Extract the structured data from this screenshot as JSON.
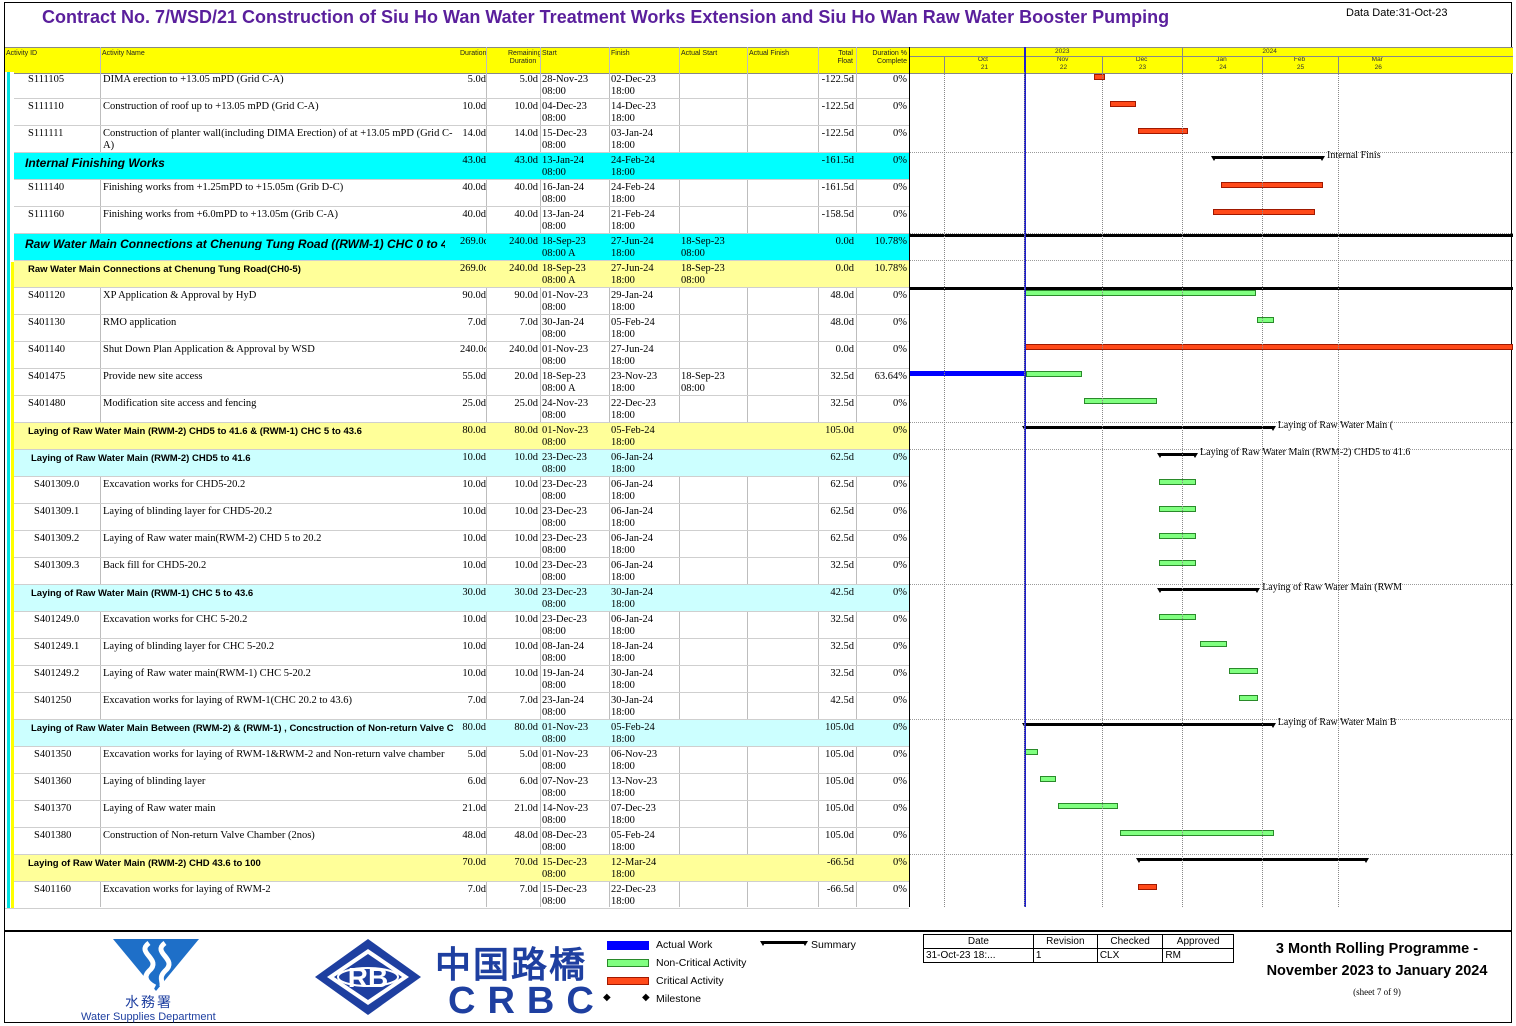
{
  "title": "Contract No. 7/WSD/21 Construction of Siu Ho Wan Water Treatment Works Extension and Siu Ho Wan Raw Water Booster Pumping",
  "data_date": "Data Date:31-Oct-23",
  "columns": {
    "activity_id": "Activity ID",
    "activity_name": "Activity Name",
    "duration": "Duration",
    "remaining_duration": "Remaining Duration",
    "start": "Start",
    "finish": "Finish",
    "actual_start": "Actual Start",
    "actual_finish": "Actual Finish",
    "total_float": "Total Float",
    "pct_complete": "Duration % Complete"
  },
  "timescale": {
    "years": [
      "2023",
      "2024"
    ],
    "months": [
      "Oct",
      "Nov",
      "Dec",
      "Jan",
      "Feb",
      "Mar"
    ],
    "weeks": [
      "21",
      "22",
      "23",
      "24",
      "25",
      "26"
    ]
  },
  "rows": [
    {
      "id": "S111105",
      "name": "DIMA erection to +13.05 mPD (Grid C-A)",
      "dur": "5.0d",
      "rem": "5.0d",
      "start": "28-Nov-23",
      "start_t": "08:00",
      "finish": "02-Dec-23",
      "finish_t": "18:00",
      "as": "",
      "as_t": "",
      "af": "",
      "tf": "-122.5d",
      "pct": "0%",
      "type": "task"
    },
    {
      "id": "S111110",
      "name": "Construction of roof up to +13.05 mPD (Grid C-A)",
      "dur": "10.0d",
      "rem": "10.0d",
      "start": "04-Dec-23",
      "start_t": "08:00",
      "finish": "14-Dec-23",
      "finish_t": "18:00",
      "as": "",
      "as_t": "",
      "af": "",
      "tf": "-122.5d",
      "pct": "0%",
      "type": "task"
    },
    {
      "id": "S111111",
      "name": "Construction of planter wall(including DIMA Erection) of at +13.05 mPD (Grid C-A)",
      "dur": "14.0d",
      "rem": "14.0d",
      "start": "15-Dec-23",
      "start_t": "08:00",
      "finish": "03-Jan-24",
      "finish_t": "18:00",
      "as": "",
      "as_t": "",
      "af": "",
      "tf": "-122.5d",
      "pct": "0%",
      "type": "task"
    },
    {
      "id": "",
      "name": "Internal Finishing Works",
      "dur": "43.0d",
      "rem": "43.0d",
      "start": "13-Jan-24",
      "start_t": "08:00",
      "finish": "24-Feb-24",
      "finish_t": "18:00",
      "as": "",
      "as_t": "",
      "af": "",
      "tf": "-161.5d",
      "pct": "0%",
      "type": "wbs1"
    },
    {
      "id": "S111140",
      "name": "Finishing works from +1.25mPD to +15.05m (Grib D-C)",
      "dur": "40.0d",
      "rem": "40.0d",
      "start": "16-Jan-24",
      "start_t": "08:00",
      "finish": "24-Feb-24",
      "finish_t": "18:00",
      "as": "",
      "as_t": "",
      "af": "",
      "tf": "-161.5d",
      "pct": "0%",
      "type": "task"
    },
    {
      "id": "S111160",
      "name": "Finishing works from +6.0mPD to +13.05m (Grib C-A)",
      "dur": "40.0d",
      "rem": "40.0d",
      "start": "13-Jan-24",
      "start_t": "08:00",
      "finish": "21-Feb-24",
      "finish_t": "18:00",
      "as": "",
      "as_t": "",
      "af": "",
      "tf": "-158.5d",
      "pct": "0%",
      "type": "task"
    },
    {
      "id": "",
      "name": "Raw Water Main Connections at Chenung Tung Road ((RWM-1) CHC 0  to 4",
      "dur": "269.0d",
      "rem": "240.0d",
      "start": "18-Sep-23",
      "start_t": "08:00 A",
      "finish": "27-Jun-24",
      "finish_t": "18:00",
      "as": "18-Sep-23",
      "as_t": "08:00",
      "af": "",
      "tf": "0.0d",
      "pct": "10.78%",
      "type": "wbs1"
    },
    {
      "id": "",
      "name": "Raw Water Main Connections at Chenung Tung Road(CH0-5)",
      "dur": "269.0d",
      "rem": "240.0d",
      "start": "18-Sep-23",
      "start_t": "08:00 A",
      "finish": "27-Jun-24",
      "finish_t": "18:00",
      "as": "18-Sep-23",
      "as_t": "08:00",
      "af": "",
      "tf": "0.0d",
      "pct": "10.78%",
      "type": "wbs2"
    },
    {
      "id": "S401120",
      "name": "XP Application & Approval by HyD",
      "dur": "90.0d",
      "rem": "90.0d",
      "start": "01-Nov-23",
      "start_t": "08:00",
      "finish": "29-Jan-24",
      "finish_t": "18:00",
      "as": "",
      "as_t": "",
      "af": "",
      "tf": "48.0d",
      "pct": "0%",
      "type": "task"
    },
    {
      "id": "S401130",
      "name": "RMO application",
      "dur": "7.0d",
      "rem": "7.0d",
      "start": "30-Jan-24",
      "start_t": "08:00",
      "finish": "05-Feb-24",
      "finish_t": "18:00",
      "as": "",
      "as_t": "",
      "af": "",
      "tf": "48.0d",
      "pct": "0%",
      "type": "task"
    },
    {
      "id": "S401140",
      "name": "Shut Down Plan Application & Approval by WSD",
      "dur": "240.0d",
      "rem": "240.0d",
      "start": "01-Nov-23",
      "start_t": "08:00",
      "finish": "27-Jun-24",
      "finish_t": "18:00",
      "as": "",
      "as_t": "",
      "af": "",
      "tf": "0.0d",
      "pct": "0%",
      "type": "task"
    },
    {
      "id": "S401475",
      "name": "Provide new site access",
      "dur": "55.0d",
      "rem": "20.0d",
      "start": "18-Sep-23",
      "start_t": "08:00 A",
      "finish": "23-Nov-23",
      "finish_t": "18:00",
      "as": "18-Sep-23",
      "as_t": "08:00",
      "af": "",
      "tf": "32.5d",
      "pct": "63.64%",
      "type": "task"
    },
    {
      "id": "S401480",
      "name": "Modification site access and fencing",
      "dur": "25.0d",
      "rem": "25.0d",
      "start": "24-Nov-23",
      "start_t": "08:00",
      "finish": "22-Dec-23",
      "finish_t": "18:00",
      "as": "",
      "as_t": "",
      "af": "",
      "tf": "32.5d",
      "pct": "0%",
      "type": "task"
    },
    {
      "id": "",
      "name": "Laying of Raw Water Main  (RWM-2)  CHD5 to 41.6 & (RWM-1) CHC 5  to 43.6",
      "dur": "80.0d",
      "rem": "80.0d",
      "start": "01-Nov-23",
      "start_t": "08:00",
      "finish": "05-Feb-24",
      "finish_t": "18:00",
      "as": "",
      "as_t": "",
      "af": "",
      "tf": "105.0d",
      "pct": "0%",
      "type": "wbs2"
    },
    {
      "id": "",
      "name": "Laying of Raw Water Main  (RWM-2)  CHD5 to 41.6",
      "dur": "10.0d",
      "rem": "10.0d",
      "start": "23-Dec-23",
      "start_t": "08:00",
      "finish": "06-Jan-24",
      "finish_t": "18:00",
      "as": "",
      "as_t": "",
      "af": "",
      "tf": "62.5d",
      "pct": "0%",
      "type": "wbs3"
    },
    {
      "id": "S401309.0",
      "name": "Excavation works for CHD5-20.2",
      "dur": "10.0d",
      "rem": "10.0d",
      "start": "23-Dec-23",
      "start_t": "08:00",
      "finish": "06-Jan-24",
      "finish_t": "18:00",
      "as": "",
      "as_t": "",
      "af": "",
      "tf": "62.5d",
      "pct": "0%",
      "type": "task2"
    },
    {
      "id": "S401309.1",
      "name": "Laying of blinding layer for CHD5-20.2",
      "dur": "10.0d",
      "rem": "10.0d",
      "start": "23-Dec-23",
      "start_t": "08:00",
      "finish": "06-Jan-24",
      "finish_t": "18:00",
      "as": "",
      "as_t": "",
      "af": "",
      "tf": "62.5d",
      "pct": "0%",
      "type": "task2"
    },
    {
      "id": "S401309.2",
      "name": "Laying of Raw water main(RWM-2) CHD 5 to 20.2",
      "dur": "10.0d",
      "rem": "10.0d",
      "start": "23-Dec-23",
      "start_t": "08:00",
      "finish": "06-Jan-24",
      "finish_t": "18:00",
      "as": "",
      "as_t": "",
      "af": "",
      "tf": "62.5d",
      "pct": "0%",
      "type": "task2"
    },
    {
      "id": "S401309.3",
      "name": "Back fill for CHD5-20.2",
      "dur": "10.0d",
      "rem": "10.0d",
      "start": "23-Dec-23",
      "start_t": "08:00",
      "finish": "06-Jan-24",
      "finish_t": "18:00",
      "as": "",
      "as_t": "",
      "af": "",
      "tf": "32.5d",
      "pct": "0%",
      "type": "task2"
    },
    {
      "id": "",
      "name": "Laying of Raw Water Main (RWM-1) CHC 5  to 43.6",
      "dur": "30.0d",
      "rem": "30.0d",
      "start": "23-Dec-23",
      "start_t": "08:00",
      "finish": "30-Jan-24",
      "finish_t": "18:00",
      "as": "",
      "as_t": "",
      "af": "",
      "tf": "42.5d",
      "pct": "0%",
      "type": "wbs3"
    },
    {
      "id": "S401249.0",
      "name": "Excavation works for CHC 5-20.2",
      "dur": "10.0d",
      "rem": "10.0d",
      "start": "23-Dec-23",
      "start_t": "08:00",
      "finish": "06-Jan-24",
      "finish_t": "18:00",
      "as": "",
      "as_t": "",
      "af": "",
      "tf": "32.5d",
      "pct": "0%",
      "type": "task2"
    },
    {
      "id": "S401249.1",
      "name": "Laying of blinding layer for CHC 5-20.2",
      "dur": "10.0d",
      "rem": "10.0d",
      "start": "08-Jan-24",
      "start_t": "08:00",
      "finish": "18-Jan-24",
      "finish_t": "18:00",
      "as": "",
      "as_t": "",
      "af": "",
      "tf": "32.5d",
      "pct": "0%",
      "type": "task2"
    },
    {
      "id": "S401249.2",
      "name": "Laying of Raw water main(RWM-1) CHC 5-20.2",
      "dur": "10.0d",
      "rem": "10.0d",
      "start": "19-Jan-24",
      "start_t": "08:00",
      "finish": "30-Jan-24",
      "finish_t": "18:00",
      "as": "",
      "as_t": "",
      "af": "",
      "tf": "32.5d",
      "pct": "0%",
      "type": "task2"
    },
    {
      "id": "S401250",
      "name": "Excavation works for laying of RWM-1(CHC 20.2 to 43.6)",
      "dur": "7.0d",
      "rem": "7.0d",
      "start": "23-Jan-24",
      "start_t": "08:00",
      "finish": "30-Jan-24",
      "finish_t": "18:00",
      "as": "",
      "as_t": "",
      "af": "",
      "tf": "42.5d",
      "pct": "0%",
      "type": "task2"
    },
    {
      "id": "",
      "name": "Laying of Raw Water Main Between  (RWM-2)  & (RWM-1) , Concstruction of Non-return Valve C",
      "dur": "80.0d",
      "rem": "80.0d",
      "start": "01-Nov-23",
      "start_t": "08:00",
      "finish": "05-Feb-24",
      "finish_t": "18:00",
      "as": "",
      "as_t": "",
      "af": "",
      "tf": "105.0d",
      "pct": "0%",
      "type": "wbs3"
    },
    {
      "id": "S401350",
      "name": "Excavation works for laying of RWM-1&RWM-2 and Non-return valve chamber",
      "dur": "5.0d",
      "rem": "5.0d",
      "start": "01-Nov-23",
      "start_t": "08:00",
      "finish": "06-Nov-23",
      "finish_t": "18:00",
      "as": "",
      "as_t": "",
      "af": "",
      "tf": "105.0d",
      "pct": "0%",
      "type": "task2"
    },
    {
      "id": "S401360",
      "name": "Laying of blinding layer",
      "dur": "6.0d",
      "rem": "6.0d",
      "start": "07-Nov-23",
      "start_t": "08:00",
      "finish": "13-Nov-23",
      "finish_t": "18:00",
      "as": "",
      "as_t": "",
      "af": "",
      "tf": "105.0d",
      "pct": "0%",
      "type": "task2"
    },
    {
      "id": "S401370",
      "name": "Laying of Raw water main",
      "dur": "21.0d",
      "rem": "21.0d",
      "start": "14-Nov-23",
      "start_t": "08:00",
      "finish": "07-Dec-23",
      "finish_t": "18:00",
      "as": "",
      "as_t": "",
      "af": "",
      "tf": "105.0d",
      "pct": "0%",
      "type": "task2"
    },
    {
      "id": "S401380",
      "name": "Construction of Non-return Valve Chamber (2nos)",
      "dur": "48.0d",
      "rem": "48.0d",
      "start": "08-Dec-23",
      "start_t": "08:00",
      "finish": "05-Feb-24",
      "finish_t": "18:00",
      "as": "",
      "as_t": "",
      "af": "",
      "tf": "105.0d",
      "pct": "0%",
      "type": "task2"
    },
    {
      "id": "",
      "name": "Laying of Raw Water Main (RWM-2) CHD 43.6 to 100",
      "dur": "70.0d",
      "rem": "70.0d",
      "start": "15-Dec-23",
      "start_t": "08:00",
      "finish": "12-Mar-24",
      "finish_t": "18:00",
      "as": "",
      "as_t": "",
      "af": "",
      "tf": "-66.5d",
      "pct": "0%",
      "type": "wbs2"
    },
    {
      "id": "S401160",
      "name": "Excavation works for laying of RWM-2",
      "dur": "7.0d",
      "rem": "7.0d",
      "start": "15-Dec-23",
      "start_t": "08:00",
      "finish": "22-Dec-23",
      "finish_t": "18:00",
      "as": "",
      "as_t": "",
      "af": "",
      "tf": "-66.5d",
      "pct": "0%",
      "type": "task2"
    }
  ],
  "gantt_labels": [
    "Internal Finis",
    "Laying of Raw Water Main  (",
    "Laying of Raw Water Main  (RWM-2)  CHD5 to 41.6",
    "Laying of Raw Water Main (RWM",
    "Laying of Raw Water Main B"
  ],
  "legend": {
    "actual_work": "Actual Work",
    "non_critical": "Non-Critical Activity",
    "critical": "Critical Activity",
    "milestone": "Milestone",
    "summary": "Summary"
  },
  "revision_table": {
    "headers": [
      "Date",
      "Revision",
      "Checked",
      "Approved"
    ],
    "values": [
      "31-Oct-23 18:...",
      "1",
      "CLX",
      "RM"
    ]
  },
  "programme_title_line1": "3 Month Rolling Programme -",
  "programme_title_line2": "November 2023 to January 2024",
  "sheet": "(sheet 7 of 9)",
  "logos": {
    "wsd_cn": "水務署",
    "wsd_en": "Water Supplies Department",
    "rb": "RB",
    "crbc_cn": "中国路橋",
    "crbc_en": "CRBC"
  },
  "colors": {
    "title": "#5a1f9c",
    "header": "#ffff00",
    "critical": "#ff4a1a",
    "non_critical": "#80ff80",
    "actual": "#0000ff",
    "wbs_cyan": "#00ffff",
    "brand_blue": "#1e3fa0"
  }
}
